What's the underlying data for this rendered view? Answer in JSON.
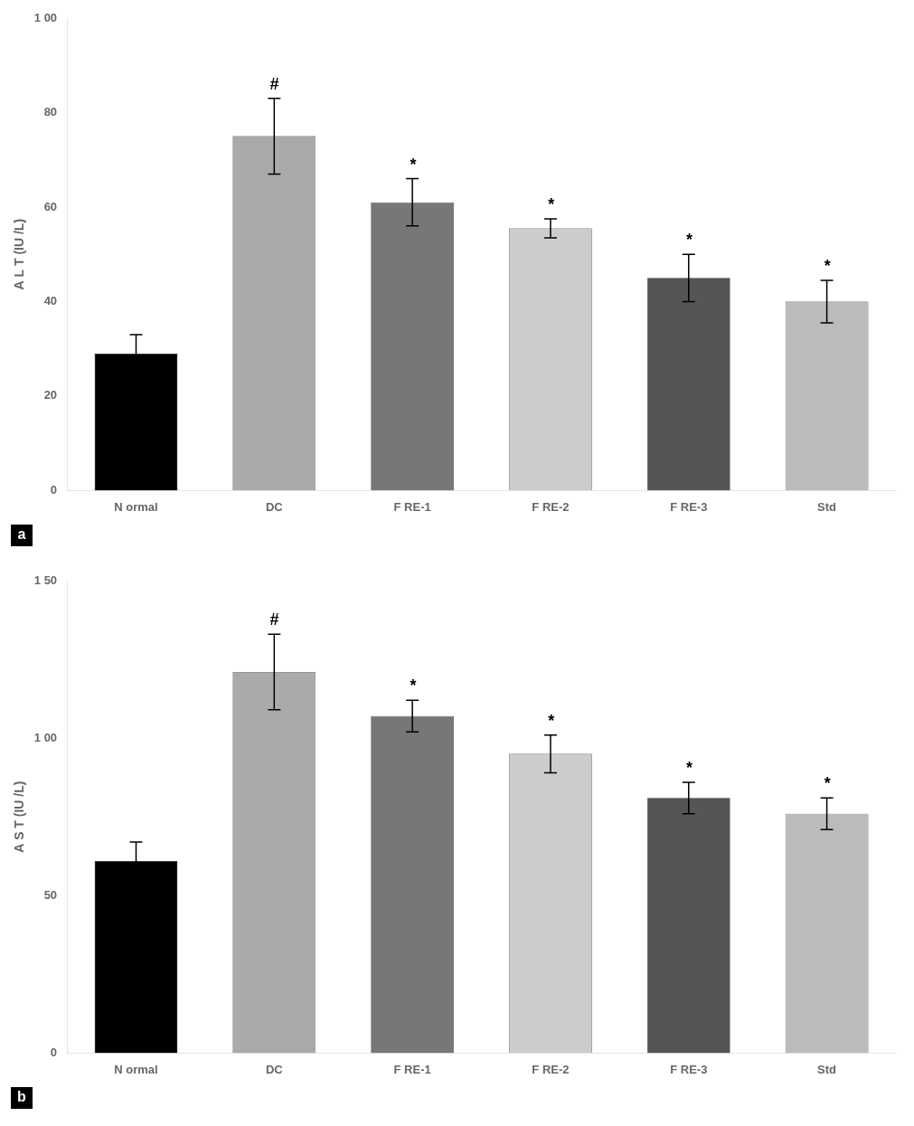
{
  "chart_data": [
    {
      "type": "bar",
      "title": "a",
      "ylabel": "A L T (IU /L)",
      "categories": [
        "N ormal",
        "DC",
        "F RE-1",
        "F RE-2",
        "F RE-3",
        "Std"
      ],
      "values": [
        29,
        75,
        61,
        55.5,
        45,
        40
      ],
      "errors": [
        4,
        8,
        5,
        2,
        5,
        4.5
      ],
      "colors": [
        "#000000",
        "#aaaaaa",
        "#777777",
        "#cccccc",
        "#555555",
        "#bbbbbb"
      ],
      "ylim": [
        0,
        100
      ],
      "yticks": [
        0,
        20,
        40,
        60,
        80,
        {
          "value": 100,
          "label": "1 00"
        }
      ],
      "annotations": [
        {
          "idx": 1,
          "text": "#",
          "color": "black"
        },
        {
          "idx": 2,
          "text": "*",
          "color": "black"
        },
        {
          "idx": 3,
          "text": "*",
          "color": "black"
        },
        {
          "idx": 4,
          "text": "*",
          "color": "black"
        },
        {
          "idx": 5,
          "text": "*",
          "color": "black"
        }
      ],
      "grid": false
    },
    {
      "type": "bar",
      "title": "b",
      "ylabel": "A S T (IU /L)",
      "categories": [
        "N ormal",
        "DC",
        "F RE-1",
        "F RE-2",
        "F RE-3",
        "Std"
      ],
      "values": [
        61,
        121,
        107,
        95,
        81,
        76
      ],
      "errors": [
        6,
        12,
        5,
        6,
        5,
        5
      ],
      "colors": [
        "#000000",
        "#aaaaaa",
        "#777777",
        "#cccccc",
        "#555555",
        "#bbbbbb"
      ],
      "ylim": [
        0,
        150
      ],
      "yticks": [
        0,
        50,
        {
          "value": 100,
          "label": "1 00"
        },
        {
          "value": 150,
          "label": "1 50"
        }
      ],
      "annotations": [
        {
          "idx": 1,
          "text": "#",
          "color": "black"
        },
        {
          "idx": 2,
          "text": "*",
          "color": "black"
        },
        {
          "idx": 3,
          "text": "*",
          "color": "black"
        },
        {
          "idx": 4,
          "text": "*",
          "color": "black"
        },
        {
          "idx": 5,
          "text": "*",
          "color": "black"
        }
      ],
      "grid": false
    }
  ]
}
